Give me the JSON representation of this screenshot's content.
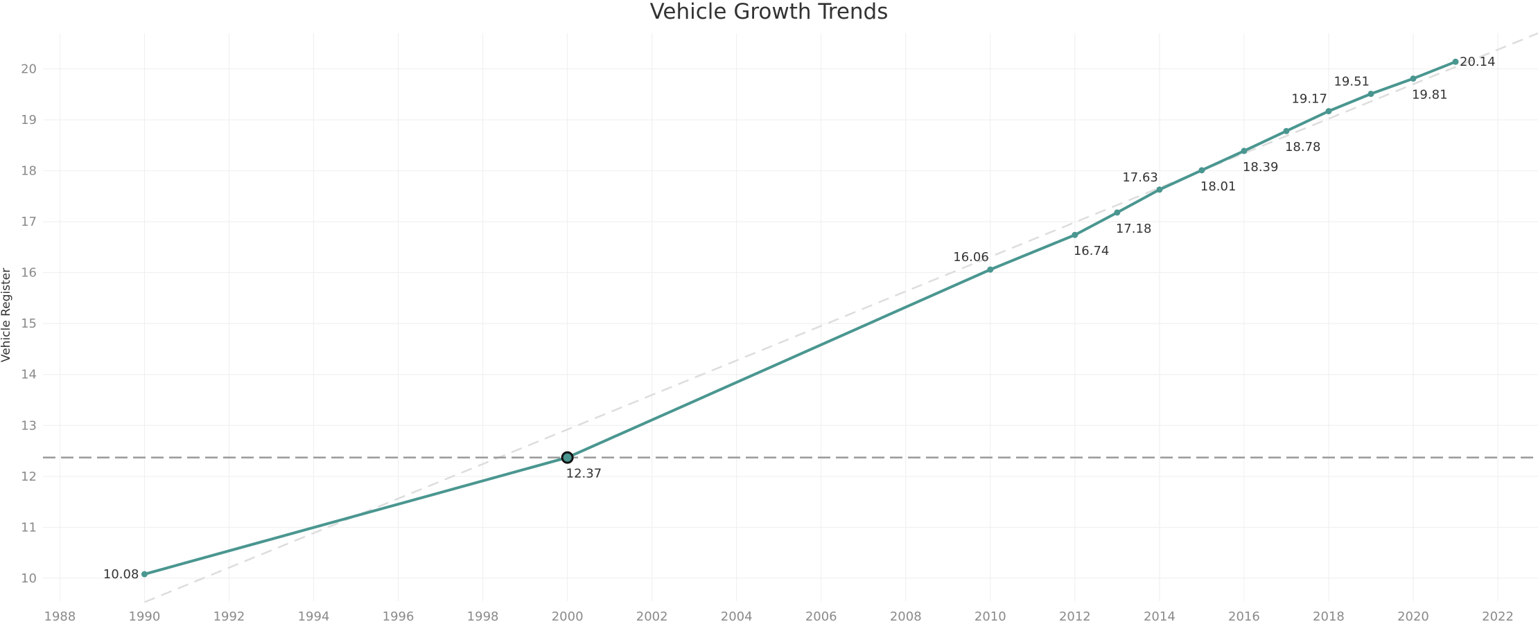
{
  "chart_data": {
    "type": "line",
    "title": "Vehicle Growth Trends",
    "xlabel": "",
    "ylabel": "Vehicle Register",
    "xlim": [
      1987.6,
      2022.95
    ],
    "ylim": [
      9.55,
      20.7
    ],
    "x_ticks": [
      "1988",
      "1990",
      "1992",
      "1994",
      "1996",
      "1998",
      "2000",
      "2002",
      "2004",
      "2006",
      "2008",
      "2010",
      "2012",
      "2014",
      "2016",
      "2018",
      "2020",
      "2022"
    ],
    "y_ticks": [
      "10",
      "11",
      "12",
      "13",
      "14",
      "15",
      "16",
      "17",
      "18",
      "19",
      "20"
    ],
    "grid": true,
    "series": [
      {
        "name": "",
        "color": "#4a9690",
        "points": [
          {
            "x": 1990,
            "y": 10.08,
            "label": "10.08",
            "label_pos": "left"
          },
          {
            "x": 2000,
            "y": 12.37,
            "label": "12.37",
            "label_pos": "below",
            "highlighted": true
          },
          {
            "x": 2010,
            "y": 16.06,
            "label": "16.06",
            "label_pos": "above-left"
          },
          {
            "x": 2012,
            "y": 16.74,
            "label": "16.74",
            "label_pos": "below"
          },
          {
            "x": 2013,
            "y": 17.18,
            "label": "17.18",
            "label_pos": "below"
          },
          {
            "x": 2014,
            "y": 17.63,
            "label": "17.63",
            "label_pos": "above-left"
          },
          {
            "x": 2015,
            "y": 18.01,
            "label": "18.01",
            "label_pos": "below"
          },
          {
            "x": 2016,
            "y": 18.39,
            "label": "18.39",
            "label_pos": "below"
          },
          {
            "x": 2017,
            "y": 18.78,
            "label": "18.78",
            "label_pos": "below"
          },
          {
            "x": 2018,
            "y": 19.17,
            "label": "19.17",
            "label_pos": "above-left"
          },
          {
            "x": 2019,
            "y": 19.51,
            "label": "19.51",
            "label_pos": "above-left"
          },
          {
            "x": 2020,
            "y": 19.81,
            "label": "19.81",
            "label_pos": "below"
          },
          {
            "x": 2021,
            "y": 20.14,
            "label": "20.14",
            "label_pos": "right"
          }
        ]
      }
    ],
    "reference_line": {
      "y": 12.37,
      "color": "#999999",
      "style": "dashed"
    },
    "trend_line": {
      "from": {
        "x": 1990,
        "y": 9.53
      },
      "to": {
        "x": 2022.95,
        "y": 20.7
      },
      "color": "#dddddd",
      "style": "dashed"
    }
  }
}
